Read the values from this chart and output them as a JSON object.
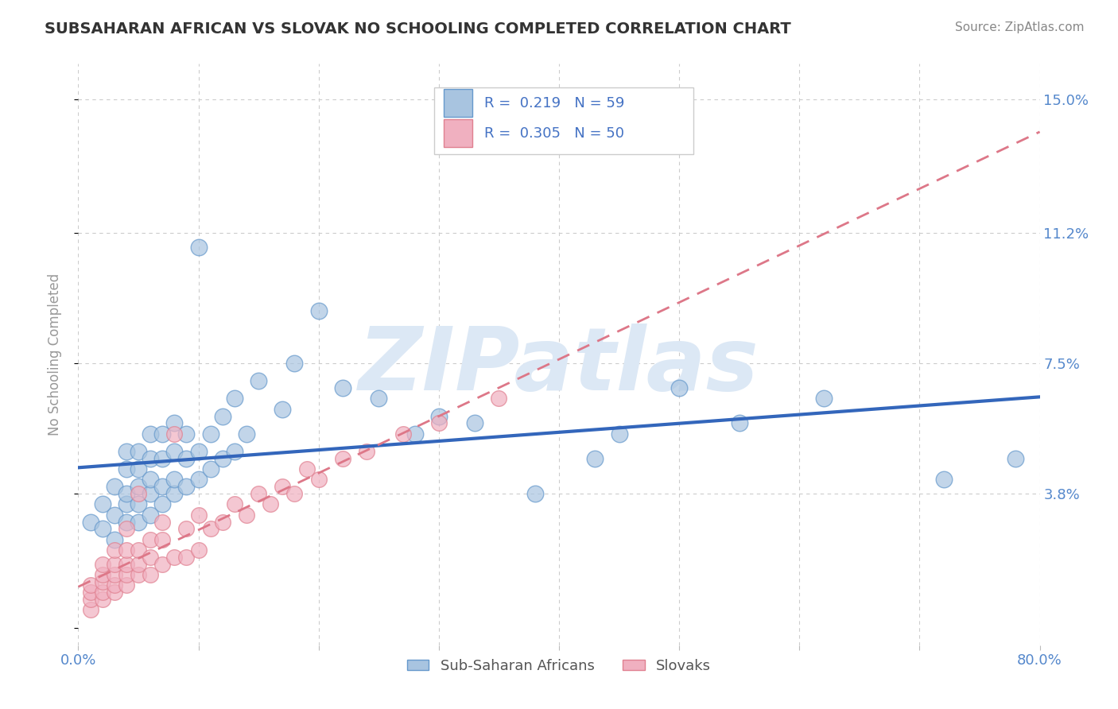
{
  "title": "SUBSAHARAN AFRICAN VS SLOVAK NO SCHOOLING COMPLETED CORRELATION CHART",
  "source_text": "Source: ZipAtlas.com",
  "ylabel": "No Schooling Completed",
  "xlim": [
    0.0,
    0.8
  ],
  "ylim": [
    -0.005,
    0.16
  ],
  "xticks": [
    0.0,
    0.1,
    0.2,
    0.3,
    0.4,
    0.5,
    0.6,
    0.7,
    0.8
  ],
  "xticklabels": [
    "0.0%",
    "",
    "",
    "",
    "",
    "",
    "",
    "",
    "80.0%"
  ],
  "yticks": [
    0.0,
    0.038,
    0.075,
    0.112,
    0.15
  ],
  "yticklabels": [
    "",
    "3.8%",
    "7.5%",
    "11.2%",
    "15.0%"
  ],
  "grid_color": "#cccccc",
  "background_color": "#ffffff",
  "watermark_text": "ZIPatlas",
  "watermark_color": "#dce8f5",
  "legend_text_color": "#4472c4",
  "series1_label": "Sub-Saharan Africans",
  "series2_label": "Slovaks",
  "series1_color": "#a8c4e0",
  "series2_color": "#f0b0c0",
  "series1_edge_color": "#6699cc",
  "series2_edge_color": "#e08090",
  "series1_line_color": "#3366bb",
  "series2_line_color": "#dd7788",
  "title_color": "#333333",
  "axis_label_color": "#5588cc",
  "source_color": "#888888",
  "series1_x": [
    0.01,
    0.02,
    0.02,
    0.03,
    0.03,
    0.03,
    0.04,
    0.04,
    0.04,
    0.04,
    0.04,
    0.05,
    0.05,
    0.05,
    0.05,
    0.05,
    0.06,
    0.06,
    0.06,
    0.06,
    0.06,
    0.07,
    0.07,
    0.07,
    0.07,
    0.08,
    0.08,
    0.08,
    0.08,
    0.09,
    0.09,
    0.09,
    0.1,
    0.1,
    0.1,
    0.11,
    0.11,
    0.12,
    0.12,
    0.13,
    0.13,
    0.14,
    0.15,
    0.17,
    0.18,
    0.2,
    0.22,
    0.25,
    0.28,
    0.3,
    0.33,
    0.38,
    0.43,
    0.45,
    0.5,
    0.55,
    0.62,
    0.72,
    0.78
  ],
  "series1_y": [
    0.03,
    0.028,
    0.035,
    0.025,
    0.032,
    0.04,
    0.03,
    0.035,
    0.038,
    0.045,
    0.05,
    0.03,
    0.035,
    0.04,
    0.045,
    0.05,
    0.032,
    0.038,
    0.042,
    0.048,
    0.055,
    0.035,
    0.04,
    0.048,
    0.055,
    0.038,
    0.042,
    0.05,
    0.058,
    0.04,
    0.048,
    0.055,
    0.042,
    0.05,
    0.108,
    0.045,
    0.055,
    0.048,
    0.06,
    0.05,
    0.065,
    0.055,
    0.07,
    0.062,
    0.075,
    0.09,
    0.068,
    0.065,
    0.055,
    0.06,
    0.058,
    0.038,
    0.048,
    0.055,
    0.068,
    0.058,
    0.065,
    0.042,
    0.048
  ],
  "series2_x": [
    0.01,
    0.01,
    0.01,
    0.01,
    0.02,
    0.02,
    0.02,
    0.02,
    0.02,
    0.03,
    0.03,
    0.03,
    0.03,
    0.03,
    0.04,
    0.04,
    0.04,
    0.04,
    0.04,
    0.05,
    0.05,
    0.05,
    0.05,
    0.06,
    0.06,
    0.06,
    0.07,
    0.07,
    0.07,
    0.08,
    0.08,
    0.09,
    0.09,
    0.1,
    0.1,
    0.11,
    0.12,
    0.13,
    0.14,
    0.15,
    0.16,
    0.17,
    0.18,
    0.19,
    0.2,
    0.22,
    0.24,
    0.27,
    0.3,
    0.35
  ],
  "series2_y": [
    0.005,
    0.008,
    0.01,
    0.012,
    0.008,
    0.01,
    0.013,
    0.015,
    0.018,
    0.01,
    0.012,
    0.015,
    0.018,
    0.022,
    0.012,
    0.015,
    0.018,
    0.022,
    0.028,
    0.015,
    0.018,
    0.022,
    0.038,
    0.015,
    0.02,
    0.025,
    0.018,
    0.025,
    0.03,
    0.02,
    0.055,
    0.02,
    0.028,
    0.022,
    0.032,
    0.028,
    0.03,
    0.035,
    0.032,
    0.038,
    0.035,
    0.04,
    0.038,
    0.045,
    0.042,
    0.048,
    0.05,
    0.055,
    0.058,
    0.065
  ]
}
